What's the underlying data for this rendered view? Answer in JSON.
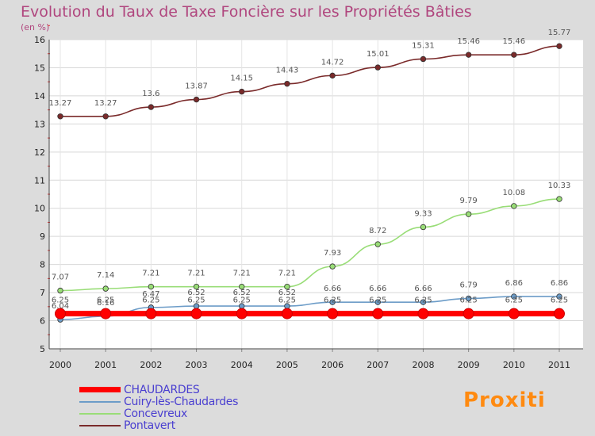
{
  "title": "Evolution du Taux de Taxe Foncière sur les Propriétés Bâties",
  "subtitle": "(en %)",
  "logo_text": "Proxiti",
  "chart_data": {
    "type": "line",
    "title": "Evolution du Taux de Taxe Foncière sur les Propriétés Bâties",
    "subtitle": "(en %)",
    "xlabel": "",
    "ylabel": "(en %)",
    "x": [
      "2000",
      "2001",
      "2002",
      "2003",
      "2004",
      "2005",
      "2006",
      "2007",
      "2008",
      "2009",
      "2010",
      "2011"
    ],
    "ylim": [
      5,
      16
    ],
    "yticks": [
      "5",
      "6",
      "7",
      "8",
      "9",
      "10",
      "11",
      "12",
      "13",
      "14",
      "15",
      "16"
    ],
    "grid": true,
    "legend_position": "bottom-left",
    "series": [
      {
        "name": "CHAUDARDES",
        "color": "#ff0000",
        "values": [
          6.25,
          6.25,
          6.25,
          6.25,
          6.25,
          6.25,
          6.25,
          6.25,
          6.25,
          6.25,
          6.25,
          6.25
        ],
        "labels": [
          "6.25",
          "6.25",
          "6.25",
          "6.25",
          "6.25",
          "6.25",
          "6.25",
          "6.25",
          "6.25",
          "6.25",
          "6.25",
          "6.25"
        ]
      },
      {
        "name": "Cuiry-lès-Chaudardes",
        "color": "#6c9cc8",
        "values": [
          6.04,
          6.16,
          6.47,
          6.52,
          6.52,
          6.52,
          6.66,
          6.66,
          6.66,
          6.79,
          6.86,
          6.86
        ],
        "labels": [
          "6.04",
          "6.16",
          "6.47",
          "6.52",
          "6.52",
          "6.52",
          "6.66",
          "6.66",
          "6.66",
          "6.79",
          "6.86",
          "6.86"
        ]
      },
      {
        "name": "Concevreux",
        "color": "#99dd77",
        "values": [
          7.07,
          7.14,
          7.21,
          7.21,
          7.21,
          7.21,
          7.93,
          8.72,
          9.33,
          9.79,
          10.08,
          10.33
        ],
        "labels": [
          "7.07",
          "7.14",
          "7.21",
          "7.21",
          "7.21",
          "7.21",
          "7.93",
          "8.72",
          "9.33",
          "9.79",
          "10.08",
          "10.33"
        ]
      },
      {
        "name": "Pontavert",
        "color": "#7a2a2a",
        "values": [
          13.27,
          13.27,
          13.6,
          13.87,
          14.15,
          14.43,
          14.72,
          15.01,
          15.31,
          15.46,
          15.46,
          15.77
        ],
        "labels": [
          "13.27",
          "13.27",
          "13.6",
          "13.87",
          "14.15",
          "14.43",
          "14.72",
          "15.01",
          "15.31",
          "15.46",
          "15.46",
          "15.77"
        ]
      }
    ]
  }
}
